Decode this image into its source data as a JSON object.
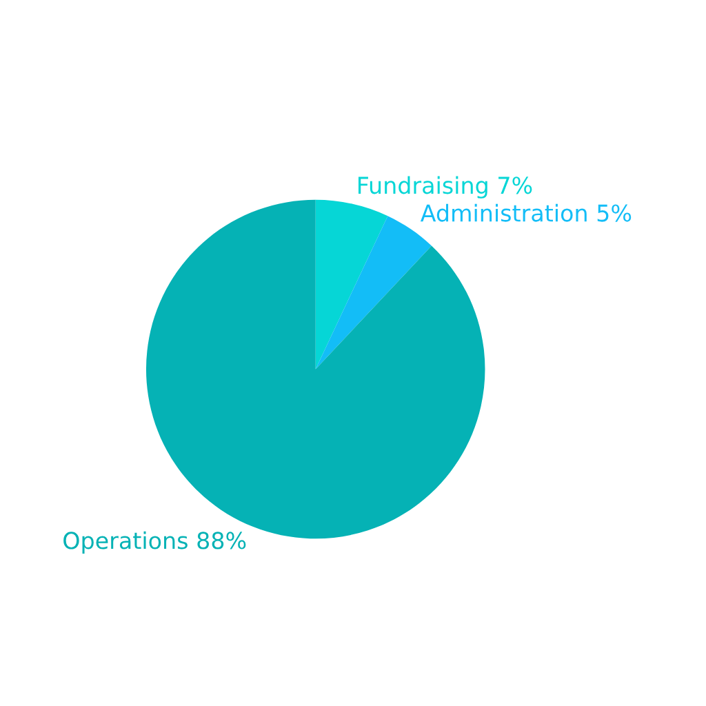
{
  "chart_data": {
    "type": "pie",
    "categories": [
      "Fundraising",
      "Administration",
      "Operations"
    ],
    "values": [
      7,
      5,
      88
    ],
    "value_labels": [
      "7%",
      "5%",
      "88%"
    ],
    "colors": [
      "#06d6d6",
      "#13bdf7",
      "#05b2b5"
    ]
  }
}
